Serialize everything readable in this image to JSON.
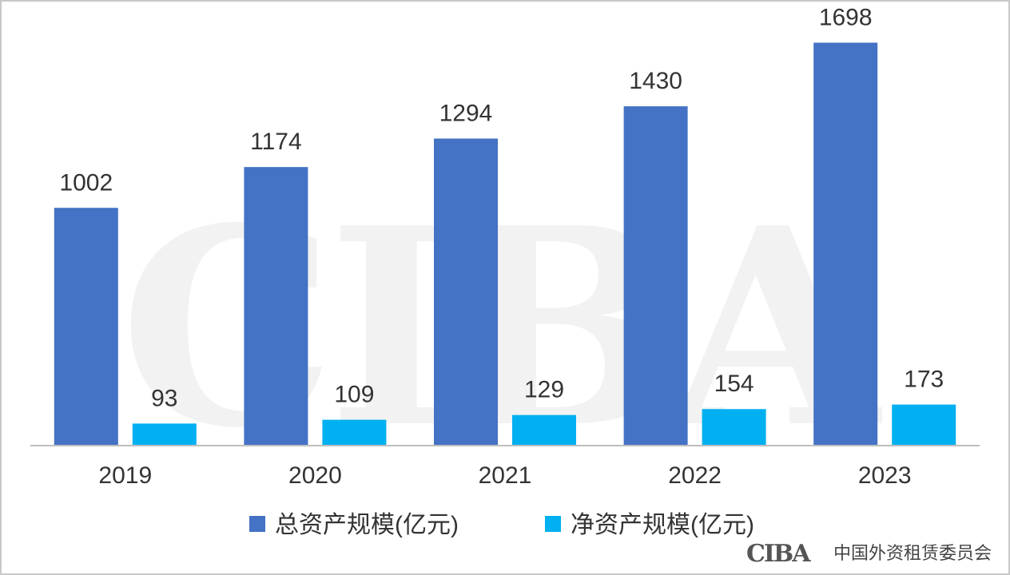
{
  "chart_data": {
    "type": "bar",
    "categories": [
      "2019",
      "2020",
      "2021",
      "2022",
      "2023"
    ],
    "series": [
      {
        "name": "总资产规模(亿元)",
        "values": [
          1002,
          1174,
          1294,
          1430,
          1698
        ],
        "color": "#4472c4"
      },
      {
        "name": "净资产规模(亿元)",
        "values": [
          93,
          109,
          129,
          154,
          173
        ],
        "color": "#00b0f0"
      }
    ],
    "ylim": [
      0,
      1750
    ],
    "grid": false,
    "legend_position": "bottom",
    "title": "",
    "xlabel": "",
    "ylabel": ""
  },
  "watermark": {
    "text": "CIBA"
  },
  "logo": {
    "mark": "CIBA",
    "text": "中国外资租赁委员会"
  }
}
